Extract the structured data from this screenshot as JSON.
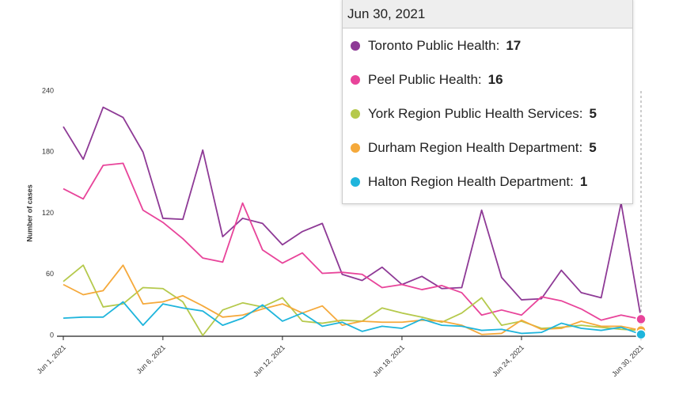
{
  "chart_data": {
    "type": "line",
    "y_label": "Number of cases",
    "categories": [
      "Jun 1, 2021",
      null,
      null,
      null,
      null,
      "Jun 6, 2021",
      null,
      null,
      null,
      null,
      null,
      "Jun 12, 2021",
      null,
      null,
      null,
      null,
      null,
      "Jun 18, 2021",
      null,
      null,
      null,
      null,
      null,
      "Jun 24, 2021",
      null,
      null,
      null,
      null,
      null,
      "Jun 30, 2021"
    ],
    "ylim": [
      0,
      240
    ],
    "yticks": [
      0,
      60,
      120,
      180,
      240
    ],
    "grid": false,
    "series": [
      {
        "name": "Toronto Public Health",
        "color": "#8e3a96",
        "values": [
          205,
          173,
          224,
          214,
          180,
          115,
          114,
          182,
          97,
          115,
          110,
          89,
          102,
          110,
          60,
          54,
          67,
          50,
          58,
          46,
          47,
          123,
          57,
          35,
          36,
          64,
          42,
          37,
          130,
          17
        ]
      },
      {
        "name": "Peel Public Health",
        "color": "#e8449a",
        "values": [
          144,
          134,
          167,
          169,
          123,
          111,
          95,
          76,
          72,
          130,
          84,
          71,
          81,
          61,
          62,
          60,
          47,
          50,
          45,
          49,
          42,
          20,
          25,
          20,
          38,
          34,
          26,
          15,
          20,
          16
        ]
      },
      {
        "name": "York Region Public Health Services",
        "color": "#b5c94c",
        "values": [
          53,
          69,
          28,
          31,
          47,
          46,
          33,
          0,
          25,
          32,
          28,
          37,
          14,
          12,
          15,
          14,
          27,
          22,
          18,
          13,
          22,
          37,
          10,
          14,
          7,
          8,
          10,
          8,
          6,
          5
        ]
      },
      {
        "name": "Durham Region Health Department",
        "color": "#f5a93b",
        "values": [
          50,
          40,
          44,
          69,
          31,
          33,
          39,
          29,
          18,
          20,
          26,
          31,
          22,
          29,
          10,
          14,
          13,
          13,
          15,
          14,
          10,
          1,
          2,
          15,
          6,
          7,
          14,
          9,
          9,
          5
        ]
      },
      {
        "name": "Halton Region Health Department",
        "color": "#1fb5dc",
        "values": [
          17,
          18,
          18,
          33,
          10,
          31,
          27,
          24,
          10,
          17,
          30,
          14,
          22,
          9,
          13,
          4,
          9,
          7,
          16,
          10,
          9,
          5,
          6,
          2,
          3,
          12,
          7,
          5,
          8,
          1
        ]
      }
    ],
    "tooltip": {
      "index": 29,
      "labels": [
        "Toronto Public Health:",
        "Peel Public Health:",
        "York Region Public Health Services:",
        "Durham Region Health Department:",
        "Halton Region Health Department:"
      ]
    }
  }
}
